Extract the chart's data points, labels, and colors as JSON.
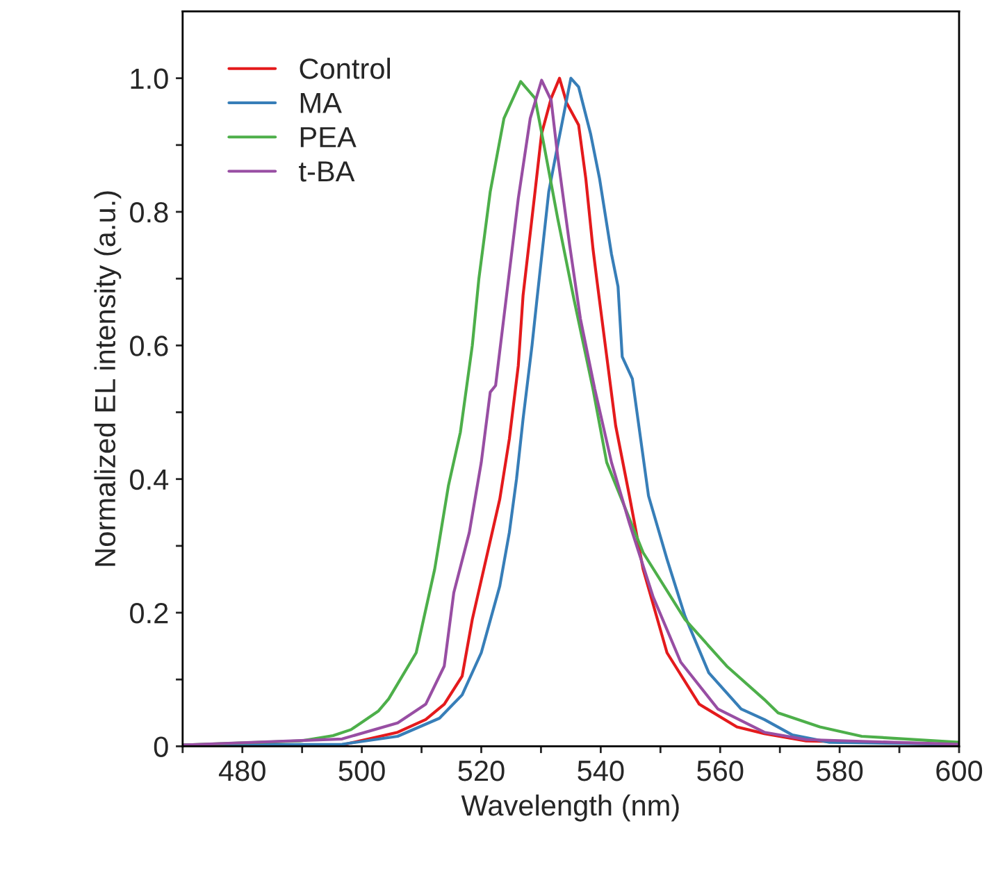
{
  "chart_data": {
    "type": "line",
    "xlabel": "Wavelength (nm)",
    "ylabel": "Normalized EL intensity (a.u.)",
    "xlim": [
      470,
      600
    ],
    "ylim": [
      0,
      1.1
    ],
    "xticks": [
      {
        "value": 470,
        "label": null
      },
      480,
      {
        "value": 490,
        "label": null
      },
      500,
      {
        "value": 510,
        "label": null
      },
      520,
      {
        "value": 530,
        "label": null
      },
      540,
      {
        "value": 550,
        "label": null
      },
      560,
      {
        "value": 570,
        "label": null
      },
      580,
      {
        "value": 590,
        "label": null
      },
      600
    ],
    "yticks": [
      {
        "value": 0,
        "label": "0"
      },
      {
        "value": 0.1,
        "label": null
      },
      {
        "value": 0.2,
        "label": "0.2"
      },
      {
        "value": 0.3,
        "label": null
      },
      {
        "value": 0.4,
        "label": "0.4"
      },
      {
        "value": 0.5,
        "label": null
      },
      {
        "value": 0.6,
        "label": "0.6"
      },
      {
        "value": 0.7,
        "label": null
      },
      {
        "value": 0.8,
        "label": "0.8"
      },
      {
        "value": 0.9,
        "label": null
      },
      {
        "value": 1.0,
        "label": "1.0"
      }
    ],
    "grid": false,
    "legend": "top left",
    "marker": "none",
    "line_style": "solid",
    "series": [
      {
        "name": "Control",
        "color": "#e41a1c",
        "x": [
          470,
          496.7,
          506,
          510.7,
          513.8,
          516.8,
          518.5,
          520.8,
          523.1,
          524.7,
          526.2,
          527.0,
          529.0,
          530.1,
          531.7,
          533.1,
          534.3,
          536.3,
          537.5,
          538.7,
          539.4,
          541.0,
          542.5,
          544.8,
          547.1,
          551.1,
          556.5,
          562.8,
          567.4,
          574.4,
          600
        ],
        "values": [
          0.002,
          0.002,
          0.021,
          0.04,
          0.063,
          0.105,
          0.19,
          0.28,
          0.37,
          0.46,
          0.57,
          0.675,
          0.83,
          0.917,
          0.97,
          1.0,
          0.963,
          0.93,
          0.85,
          0.745,
          0.695,
          0.584,
          0.48,
          0.375,
          0.265,
          0.14,
          0.063,
          0.029,
          0.019,
          0.008,
          0.003
        ]
      },
      {
        "name": "MA",
        "color": "#377eb8",
        "x": [
          470,
          496.7,
          506,
          513.0,
          516.8,
          520.0,
          523.1,
          524.7,
          525.9,
          527.0,
          528.5,
          529.3,
          531.3,
          532.8,
          535.0,
          536.3,
          538.3,
          539.8,
          541.8,
          542.9,
          543.6,
          545.3,
          548.0,
          551.1,
          554.1,
          558.1,
          563.5,
          567.4,
          572.1,
          578.3,
          600
        ],
        "values": [
          0.002,
          0.003,
          0.015,
          0.042,
          0.077,
          0.14,
          0.24,
          0.32,
          0.4,
          0.49,
          0.6,
          0.667,
          0.83,
          0.9,
          1.0,
          0.987,
          0.917,
          0.85,
          0.737,
          0.688,
          0.583,
          0.55,
          0.375,
          0.28,
          0.195,
          0.11,
          0.056,
          0.04,
          0.017,
          0.006,
          0.003
        ]
      },
      {
        "name": "PEA",
        "color": "#4daf4a",
        "x": [
          470,
          489.7,
          495.2,
          498.2,
          502.8,
          504.5,
          509.1,
          512.2,
          514.5,
          516.5,
          518.5,
          519.6,
          521.5,
          523.8,
          526.6,
          529.0,
          530.5,
          532.8,
          535.5,
          538.7,
          541.0,
          547.1,
          554.1,
          561.1,
          567.4,
          569.7,
          576.7,
          583.7,
          600
        ],
        "values": [
          0.002,
          0.008,
          0.016,
          0.025,
          0.053,
          0.071,
          0.14,
          0.265,
          0.39,
          0.47,
          0.6,
          0.7,
          0.83,
          0.94,
          0.995,
          0.97,
          0.9,
          0.79,
          0.67,
          0.535,
          0.425,
          0.29,
          0.19,
          0.12,
          0.07,
          0.05,
          0.029,
          0.015,
          0.006
        ]
      },
      {
        "name": "t-BA",
        "color": "#984ea3",
        "x": [
          470,
          496.7,
          506,
          510.7,
          513.8,
          515.4,
          518.0,
          520.0,
          521.5,
          522.4,
          524.3,
          526.2,
          528.2,
          530.1,
          531.7,
          532.8,
          534.8,
          536.6,
          539.0,
          541.8,
          544.8,
          548.8,
          553.4,
          559.6,
          567.4,
          574.4,
          600
        ],
        "values": [
          0.002,
          0.011,
          0.035,
          0.063,
          0.12,
          0.23,
          0.32,
          0.425,
          0.53,
          0.54,
          0.68,
          0.82,
          0.94,
          0.997,
          0.967,
          0.883,
          0.75,
          0.64,
          0.535,
          0.425,
          0.334,
          0.223,
          0.126,
          0.056,
          0.021,
          0.01,
          0.003
        ]
      }
    ]
  }
}
